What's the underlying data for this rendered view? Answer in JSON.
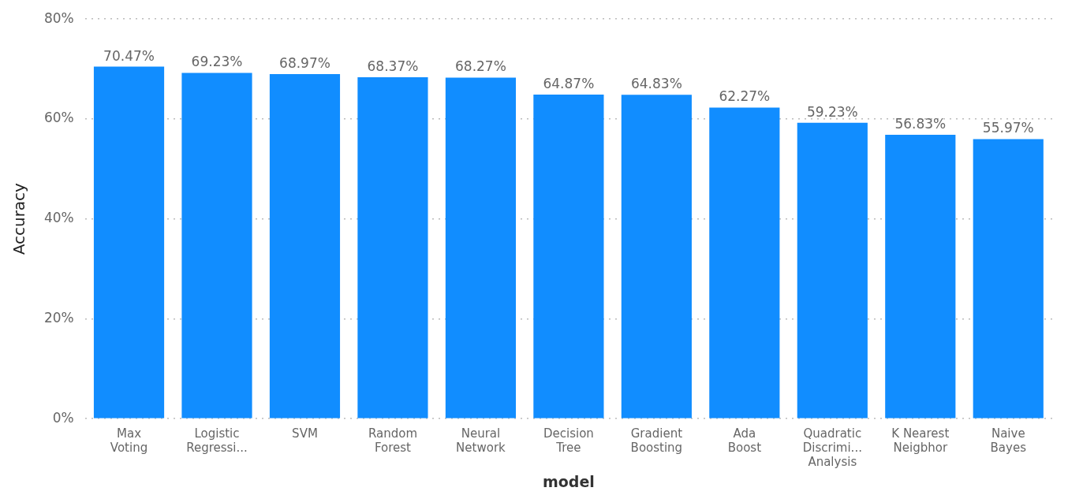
{
  "chart_data": {
    "type": "bar",
    "xlabel": "model",
    "ylabel": "Accuracy",
    "categories": [
      "Max\nVoting",
      "Logistic\nRegressi...",
      "SVM",
      "Random\nForest",
      "Neural\nNetwork",
      "Decision\nTree",
      "Gradient\nBoosting",
      "Ada\nBoost",
      "Quadratic\nDiscrimi...\nAnalysis",
      "K Nearest\nNeigbhor",
      "Naive\nBayes"
    ],
    "values": [
      70.47,
      69.23,
      68.97,
      68.37,
      68.27,
      64.87,
      64.83,
      62.27,
      59.23,
      56.83,
      55.97
    ],
    "value_labels": [
      "70.47%",
      "69.23%",
      "68.97%",
      "68.37%",
      "68.27%",
      "64.87%",
      "64.83%",
      "62.27%",
      "59.23%",
      "56.83%",
      "55.97%"
    ],
    "color": "#118dff",
    "ylim": [
      0,
      80
    ],
    "yticks": [
      {
        "value": 0,
        "label": "0%"
      },
      {
        "value": 20,
        "label": "20%"
      },
      {
        "value": 40,
        "label": "40%"
      },
      {
        "value": 60,
        "label": "60%"
      },
      {
        "value": 80,
        "label": "80%"
      }
    ],
    "grid": "y",
    "legend": false
  }
}
